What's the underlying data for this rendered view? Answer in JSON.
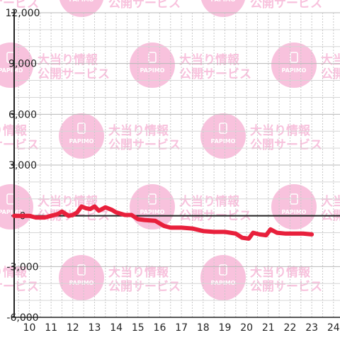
{
  "watermark": {
    "line1": "大当り情報",
    "line2": "公開サービス",
    "logo": "PAPIMO",
    "color": "#f7b8d8"
  },
  "chart_data": {
    "type": "line",
    "title": "",
    "xlabel": "",
    "ylabel": "",
    "xlim": [
      9.3,
      24.3
    ],
    "ylim": [
      -6000,
      12000
    ],
    "x_ticks": [
      10,
      11,
      12,
      13,
      14,
      15,
      16,
      17,
      18,
      19,
      20,
      21,
      22,
      23,
      24
    ],
    "y_ticks": [
      -6000,
      -3000,
      0,
      3000,
      6000,
      9000,
      12000
    ],
    "y_tick_labels": [
      "-6,000",
      "-3,000",
      "0",
      "3,000",
      "6,000",
      "9,000",
      "12,000"
    ],
    "grid": true,
    "line_color": "#e8203c",
    "series": [
      {
        "values": [
          [
            9.3,
            0
          ],
          [
            10.0,
            0
          ],
          [
            10.3,
            -100
          ],
          [
            10.7,
            -100
          ],
          [
            11.0,
            0
          ],
          [
            11.3,
            100
          ],
          [
            11.5,
            250
          ],
          [
            11.8,
            0
          ],
          [
            12.0,
            50
          ],
          [
            12.2,
            200
          ],
          [
            12.4,
            550
          ],
          [
            12.6,
            450
          ],
          [
            12.8,
            400
          ],
          [
            13.0,
            550
          ],
          [
            13.2,
            300
          ],
          [
            13.5,
            500
          ],
          [
            13.8,
            350
          ],
          [
            14.0,
            200
          ],
          [
            14.4,
            50
          ],
          [
            14.7,
            50
          ],
          [
            15.0,
            -200
          ],
          [
            15.3,
            -250
          ],
          [
            15.8,
            -300
          ],
          [
            16.2,
            -600
          ],
          [
            16.5,
            -700
          ],
          [
            17.0,
            -700
          ],
          [
            17.5,
            -750
          ],
          [
            18.0,
            -900
          ],
          [
            18.5,
            -950
          ],
          [
            19.0,
            -950
          ],
          [
            19.5,
            -1050
          ],
          [
            19.8,
            -1300
          ],
          [
            20.1,
            -1350
          ],
          [
            20.3,
            -1000
          ],
          [
            20.6,
            -1100
          ],
          [
            20.9,
            -1150
          ],
          [
            21.1,
            -800
          ],
          [
            21.4,
            -1000
          ],
          [
            21.8,
            -1050
          ],
          [
            22.1,
            -1050
          ],
          [
            22.6,
            -1050
          ],
          [
            23.0,
            -1100
          ]
        ]
      }
    ]
  }
}
